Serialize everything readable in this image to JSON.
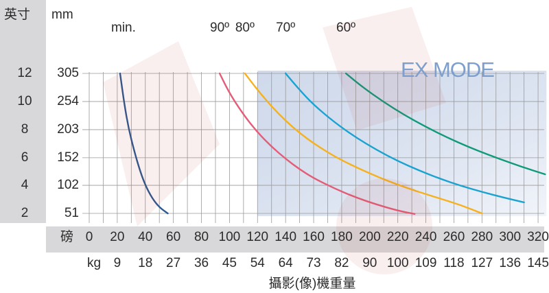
{
  "chart_data": {
    "type": "line",
    "title": "",
    "inch_unit_label": "英寸",
    "mm_unit_label": "mm",
    "lb_unit_label": "磅",
    "kg_unit_label": "kg",
    "xlabel": "攝影(像)機重量",
    "overlay_text": "EX MODE",
    "y_inch_ticks": [
      "12",
      "10",
      "8",
      "6",
      "4",
      "2"
    ],
    "y_mm_ticks": [
      "305",
      "254",
      "203",
      "152",
      "102",
      "51"
    ],
    "y_mm_values": [
      305,
      254,
      203,
      152,
      102,
      51
    ],
    "x_lb_ticks": [
      "0",
      "20",
      "40",
      "60",
      "80",
      "100",
      "120",
      "140",
      "160",
      "180",
      "200",
      "220",
      "240",
      "260",
      "280",
      "300",
      "320"
    ],
    "x_lb_values": [
      0,
      20,
      40,
      60,
      80,
      100,
      120,
      140,
      160,
      180,
      200,
      220,
      240,
      260,
      280,
      300,
      320
    ],
    "x_kg_ticks": [
      "9",
      "18",
      "27",
      "36",
      "45",
      "54",
      "64",
      "73",
      "82",
      "90",
      "100",
      "109",
      "118",
      "127",
      "136",
      "145"
    ],
    "xlim": [
      -8,
      325
    ],
    "ylim": [
      40,
      315
    ],
    "grid": true,
    "series": [
      {
        "name": "min.",
        "color": "#2c5a8f",
        "x": [
          22,
          25,
          28,
          32,
          36,
          40,
          45,
          50,
          56
        ],
        "y": [
          305,
          250,
          206,
          165,
          130,
          102,
          78,
          62,
          51
        ]
      },
      {
        "name": "90º",
        "color": "#e35d78",
        "x": [
          93,
          100,
          110,
          120,
          130,
          140,
          150,
          160,
          175,
          190,
          205,
          220,
          232
        ],
        "y": [
          305,
          269,
          230,
          198,
          172,
          150,
          131,
          115,
          96,
          80,
          67,
          56,
          50
        ]
      },
      {
        "name": "80º",
        "color": "#f5b11e",
        "x": [
          111,
          120,
          130,
          140,
          150,
          160,
          175,
          190,
          205,
          220,
          235,
          250,
          265,
          280
        ],
        "y": [
          305,
          275,
          245,
          219,
          197,
          178,
          154,
          135,
          118,
          103,
          90,
          78,
          66,
          51
        ]
      },
      {
        "name": "70º",
        "color": "#1aa2d0",
        "x": [
          140,
          150,
          160,
          175,
          190,
          205,
          220,
          235,
          250,
          265,
          280,
          295,
          310
        ],
        "y": [
          305,
          275,
          248,
          216,
          189,
          166,
          146,
          129,
          114,
          101,
          90,
          80,
          71
        ]
      },
      {
        "name": "60º",
        "color": "#119a7a",
        "x": [
          183,
          195,
          210,
          225,
          240,
          255,
          270,
          285,
          300,
          315,
          325
        ],
        "y": [
          305,
          280,
          253,
          229,
          208,
          189,
          172,
          157,
          143,
          130,
          122
        ]
      }
    ],
    "legend": "labels above top of each curve"
  }
}
